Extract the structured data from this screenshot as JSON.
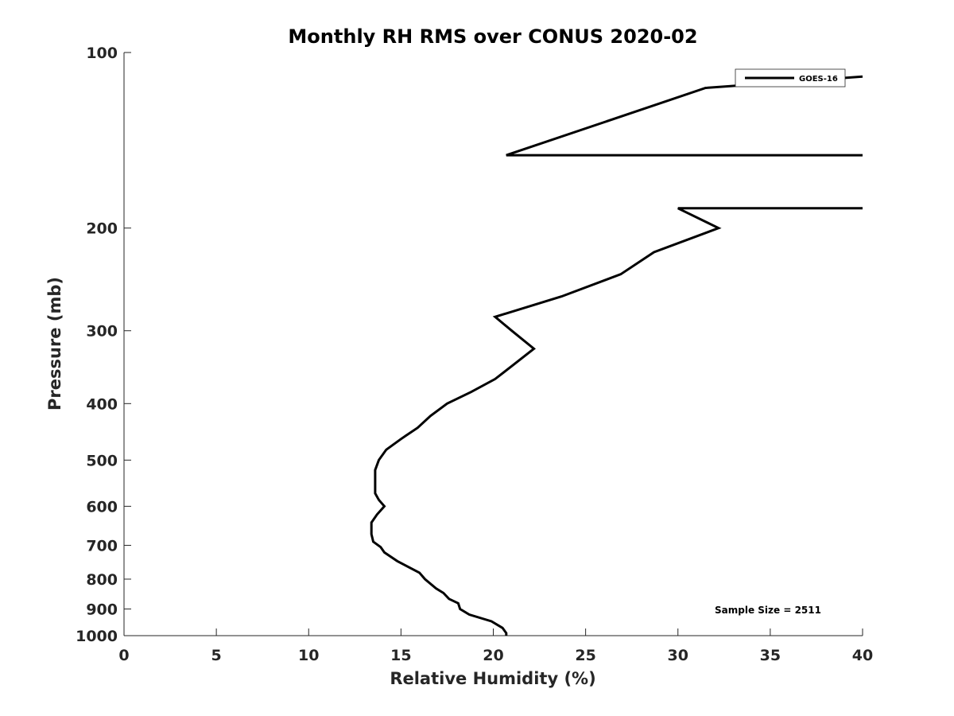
{
  "chart_data": {
    "type": "line",
    "title": "Monthly RH RMS over CONUS  2020-02",
    "xlabel": "Relative Humidity (%)",
    "ylabel": "Pressure (mb)",
    "xlim": [
      0,
      40
    ],
    "ylim": [
      100,
      1000
    ],
    "yscale": "log",
    "y_reversed": true,
    "grid": false,
    "legend_position": "top-right",
    "line_color": "#000000",
    "xticks": [
      0,
      5,
      10,
      15,
      20,
      25,
      30,
      35,
      40
    ],
    "xtick_labels": [
      "0",
      "5",
      "10",
      "15",
      "20",
      "25",
      "30",
      "35",
      "40"
    ],
    "yticks": [
      100,
      200,
      300,
      400,
      500,
      600,
      700,
      800,
      900,
      1000
    ],
    "ytick_labels": [
      "100",
      "200",
      "300",
      "400",
      "500",
      "600",
      "700",
      "800",
      "900",
      "1000"
    ],
    "annotation": "Sample Size = 2511",
    "series": [
      {
        "name": "GOES-16",
        "points": [
          [
            40,
            110
          ],
          [
            31.5,
            115
          ],
          [
            20.7,
            150
          ],
          [
            40,
            150
          ],
          null,
          [
            40,
            185
          ],
          [
            30,
            185
          ],
          [
            32.2,
            200
          ],
          [
            28.7,
            220
          ],
          [
            26.9,
            240
          ],
          [
            23.7,
            262
          ],
          [
            20.1,
            284
          ],
          [
            21,
            300
          ],
          [
            22.2,
            322
          ],
          [
            21,
            345
          ],
          [
            20.1,
            363
          ],
          [
            18.8,
            382
          ],
          [
            17.5,
            400
          ],
          [
            16.6,
            420
          ],
          [
            15.9,
            440
          ],
          [
            15,
            460
          ],
          [
            14.2,
            480
          ],
          [
            13.8,
            500
          ],
          [
            13.6,
            520
          ],
          [
            13.6,
            545
          ],
          [
            13.6,
            570
          ],
          [
            13.8,
            585
          ],
          [
            14.1,
            600
          ],
          [
            13.7,
            620
          ],
          [
            13.4,
            640
          ],
          [
            13.4,
            670
          ],
          [
            13.5,
            690
          ],
          [
            13.9,
            705
          ],
          [
            14.1,
            720
          ],
          [
            14.8,
            745
          ],
          [
            16,
            780
          ],
          [
            16.3,
            800
          ],
          [
            16.9,
            830
          ],
          [
            17.3,
            845
          ],
          [
            17.6,
            865
          ],
          [
            18.1,
            880
          ],
          [
            18.2,
            900
          ],
          [
            18.7,
            920
          ],
          [
            19.9,
            945
          ],
          [
            20.5,
            970
          ],
          [
            20.7,
            990
          ],
          [
            20.7,
            1000
          ]
        ]
      }
    ]
  }
}
